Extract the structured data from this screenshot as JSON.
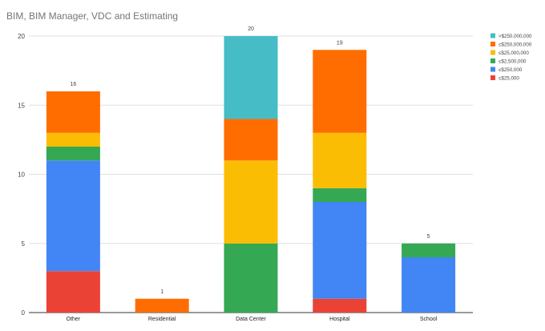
{
  "chart_data": {
    "type": "bar",
    "stacked": true,
    "title": "BIM, BIM Manager, VDC and Estimating",
    "xlabel": "",
    "ylabel": "",
    "ylim": [
      0,
      20
    ],
    "yticks": [
      0,
      5,
      10,
      15,
      20
    ],
    "grid": true,
    "legend_position": "right",
    "categories": [
      "Other",
      "Residential",
      "Data Center",
      "Hospital",
      "School"
    ],
    "series": [
      {
        "name": "≤$25,000",
        "color": "#ea4335",
        "values": [
          3,
          0,
          0,
          1,
          0
        ]
      },
      {
        "name": "≤$250,000",
        "color": "#4285f4",
        "values": [
          8,
          0,
          0,
          7,
          4
        ]
      },
      {
        "name": "≤$2,500,000",
        "color": "#34a853",
        "values": [
          1,
          0,
          5,
          1,
          1
        ]
      },
      {
        "name": "≤$25,000,000",
        "color": "#fbbc04",
        "values": [
          1,
          0,
          6,
          4,
          0
        ]
      },
      {
        "name": "≤$250,000,000",
        "color": "#ff6d01",
        "values": [
          3,
          1,
          3,
          6,
          0
        ]
      },
      {
        "name": ">$250,000,000",
        "color": "#46bdc6",
        "values": [
          0,
          0,
          6,
          0,
          0
        ]
      }
    ],
    "legend_order": [
      ">$250,000,000",
      "≤$250,000,000",
      "≤$25,000,000",
      "≤$2,500,000",
      "≤$250,000",
      "≤$25,000"
    ],
    "totals": [
      16,
      1,
      20,
      19,
      5
    ]
  }
}
